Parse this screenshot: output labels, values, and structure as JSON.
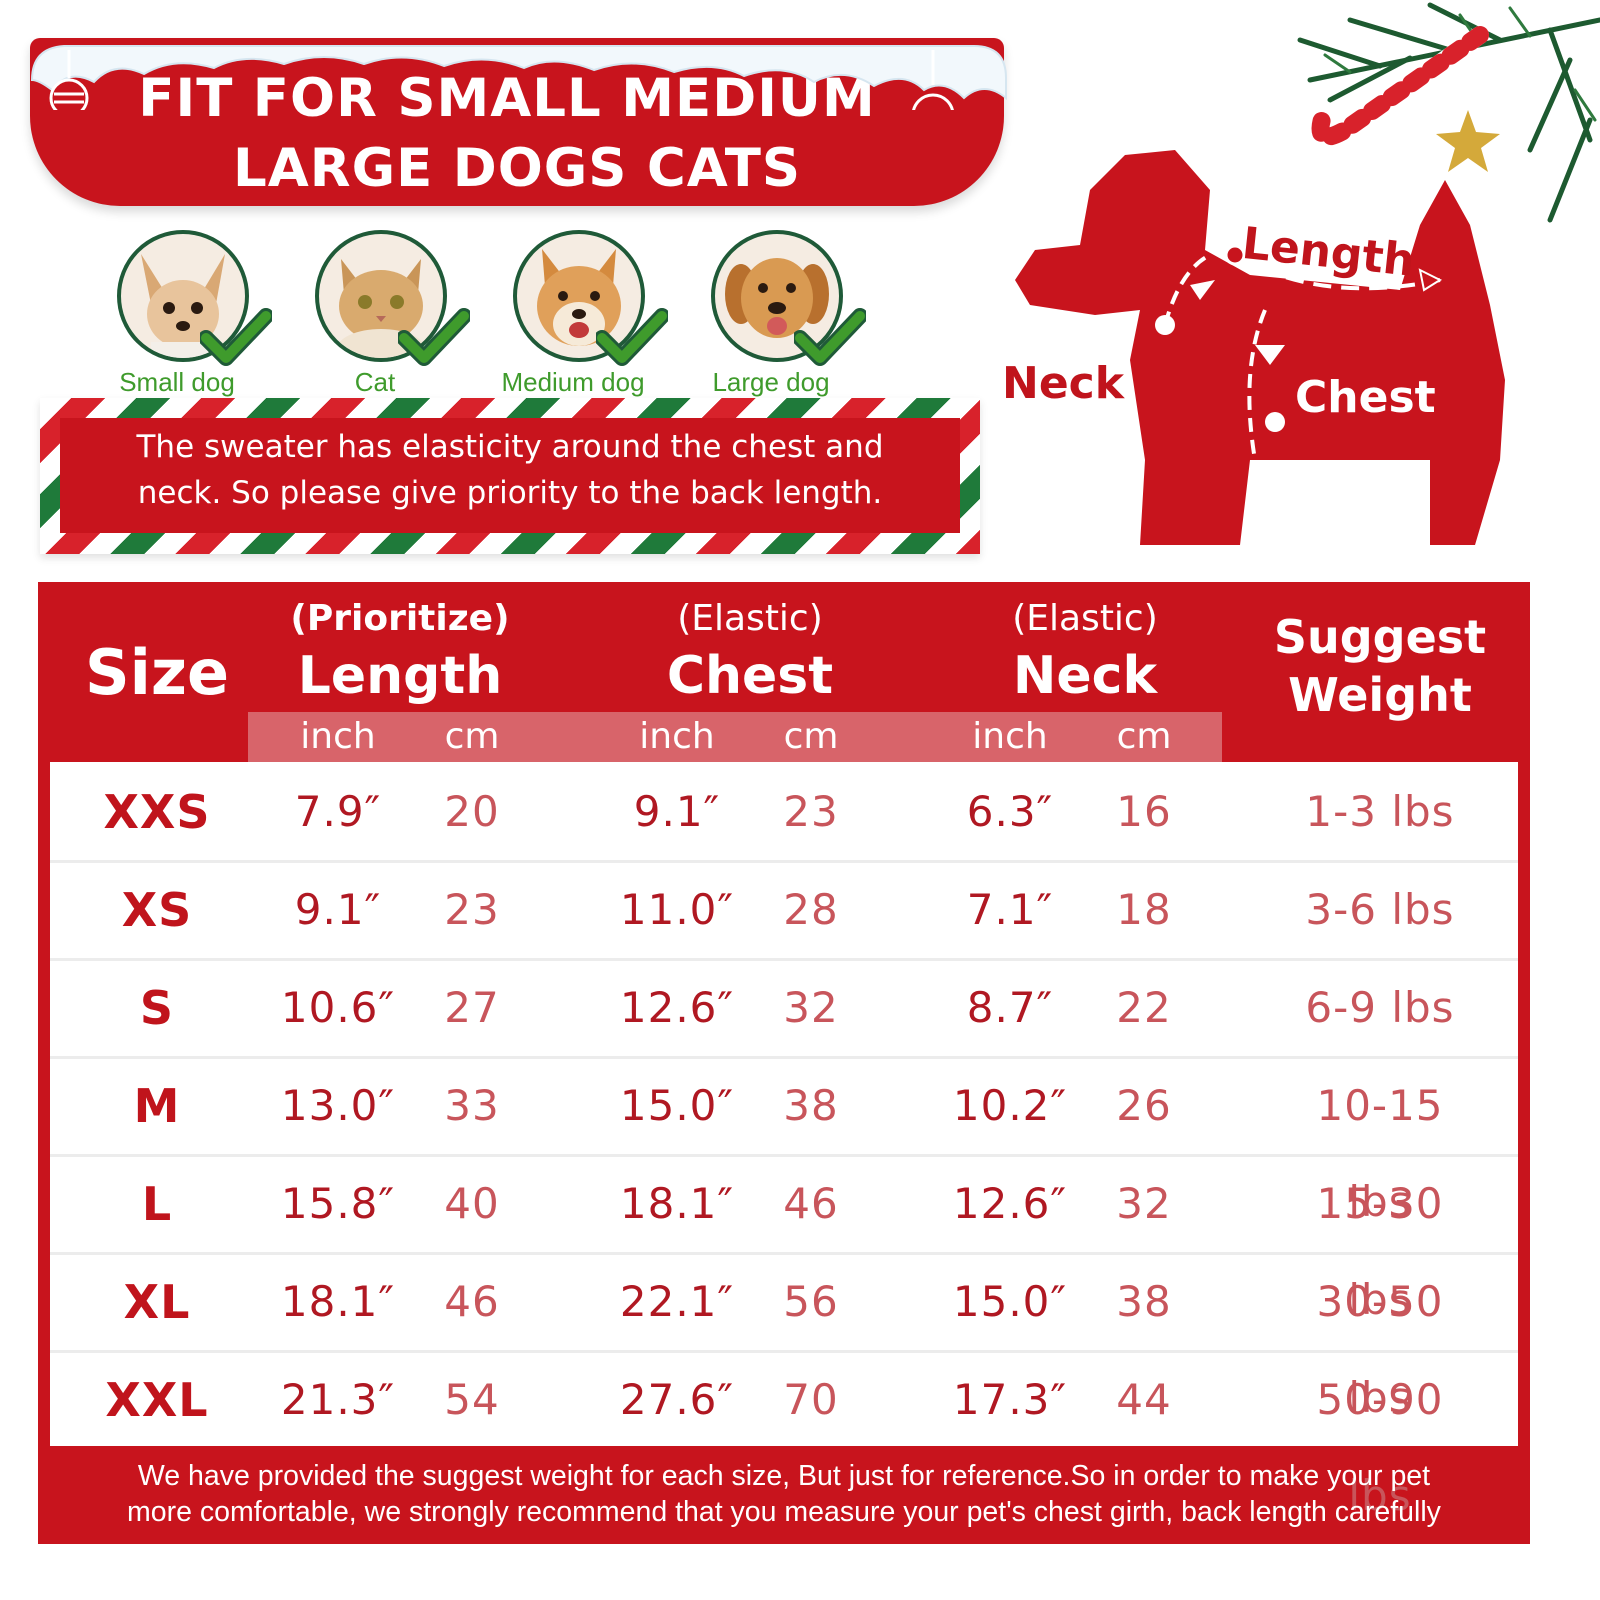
{
  "banner": {
    "line1": "FIT FOR SMALL MEDIUM",
    "line2": "LARGE DOGS CATS"
  },
  "pets": [
    {
      "label": "Small dog",
      "icon": "chihuahua-photo"
    },
    {
      "label": "Cat",
      "icon": "cat-photo"
    },
    {
      "label": "Medium dog",
      "icon": "shiba-photo"
    },
    {
      "label": "Large dog",
      "icon": "golden-retriever-photo"
    }
  ],
  "notice": {
    "line1": "The sweater has elasticity around the chest and",
    "line2": "neck. So please give priority to the back length."
  },
  "diagram": {
    "length": "Length",
    "neck": "Neck",
    "chest": "Chest"
  },
  "table": {
    "size_header": "Size",
    "length_note": "(Prioritize)",
    "length_header": "Length",
    "chest_note": "(Elastic)",
    "chest_header": "Chest",
    "neck_note": "(Elastic)",
    "neck_header": "Neck",
    "weight_header_1": "Suggest",
    "weight_header_2": "Weight",
    "unit_inch": "inch",
    "unit_cm": "cm",
    "rows": [
      {
        "size": "XXS",
        "length_in": "7.9″",
        "length_cm": "20",
        "chest_in": "9.1″",
        "chest_cm": "23",
        "neck_in": "6.3″",
        "neck_cm": "16",
        "weight": "1-3 lbs"
      },
      {
        "size": "XS",
        "length_in": "9.1″",
        "length_cm": "23",
        "chest_in": "11.0″",
        "chest_cm": "28",
        "neck_in": "7.1″",
        "neck_cm": "18",
        "weight": "3-6 lbs"
      },
      {
        "size": "S",
        "length_in": "10.6″",
        "length_cm": "27",
        "chest_in": "12.6″",
        "chest_cm": "32",
        "neck_in": "8.7″",
        "neck_cm": "22",
        "weight": "6-9 lbs"
      },
      {
        "size": "M",
        "length_in": "13.0″",
        "length_cm": "33",
        "chest_in": "15.0″",
        "chest_cm": "38",
        "neck_in": "10.2″",
        "neck_cm": "26",
        "weight": "10-15 lbs"
      },
      {
        "size": "L",
        "length_in": "15.8″",
        "length_cm": "40",
        "chest_in": "18.1″",
        "chest_cm": "46",
        "neck_in": "12.6″",
        "neck_cm": "32",
        "weight": "15-30 lbs"
      },
      {
        "size": "XL",
        "length_in": "18.1″",
        "length_cm": "46",
        "chest_in": "22.1″",
        "chest_cm": "56",
        "neck_in": "15.0″",
        "neck_cm": "38",
        "weight": "30-50 lbs"
      },
      {
        "size": "XXL",
        "length_in": "21.3″",
        "length_cm": "54",
        "chest_in": "27.6″",
        "chest_cm": "70",
        "neck_in": "17.3″",
        "neck_cm": "44",
        "weight": "50-90 lbs"
      }
    ]
  },
  "footnote": {
    "line1": "We have provided the suggest weight for each size, But just for reference.So in order to make your pet",
    "line2": "more comfortable, we strongly recommend that you measure your pet's chest girth, back length carefully"
  },
  "colors": {
    "brand_red": "#c8141d",
    "check_green": "#3f9b2c",
    "stripe_green": "#1f7a3a"
  }
}
